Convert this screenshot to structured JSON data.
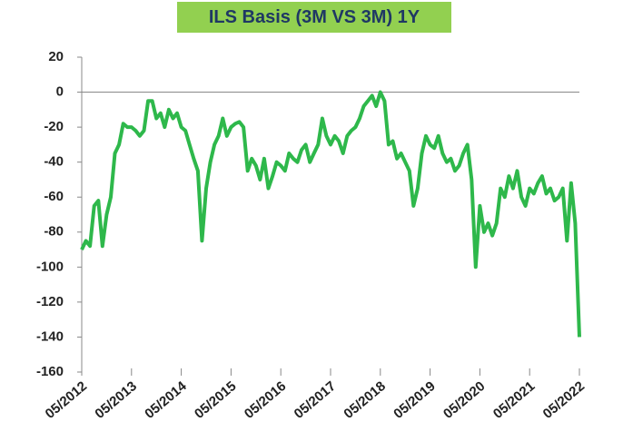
{
  "chart_data": {
    "type": "line",
    "title": "ILS Basis (3M VS 3M) 1Y",
    "x": [
      "05/2012",
      "06/2012",
      "07/2012",
      "08/2012",
      "09/2012",
      "10/2012",
      "11/2012",
      "12/2012",
      "01/2013",
      "02/2013",
      "03/2013",
      "04/2013",
      "05/2013",
      "06/2013",
      "07/2013",
      "08/2013",
      "09/2013",
      "10/2013",
      "11/2013",
      "12/2013",
      "01/2014",
      "02/2014",
      "03/2014",
      "04/2014",
      "05/2014",
      "06/2014",
      "07/2014",
      "08/2014",
      "09/2014",
      "10/2014",
      "11/2014",
      "12/2014",
      "01/2015",
      "02/2015",
      "03/2015",
      "04/2015",
      "05/2015",
      "06/2015",
      "07/2015",
      "08/2015",
      "09/2015",
      "10/2015",
      "11/2015",
      "12/2015",
      "01/2016",
      "02/2016",
      "03/2016",
      "04/2016",
      "05/2016",
      "06/2016",
      "07/2016",
      "08/2016",
      "09/2016",
      "10/2016",
      "11/2016",
      "12/2016",
      "01/2017",
      "02/2017",
      "03/2017",
      "04/2017",
      "05/2017",
      "06/2017",
      "07/2017",
      "08/2017",
      "09/2017",
      "10/2017",
      "11/2017",
      "12/2017",
      "01/2018",
      "02/2018",
      "03/2018",
      "04/2018",
      "05/2018",
      "06/2018",
      "07/2018",
      "08/2018",
      "09/2018",
      "10/2018",
      "11/2018",
      "12/2018",
      "01/2019",
      "02/2019",
      "03/2019",
      "04/2019",
      "05/2019",
      "06/2019",
      "07/2019",
      "08/2019",
      "09/2019",
      "10/2019",
      "11/2019",
      "12/2019",
      "01/2020",
      "02/2020",
      "03/2020",
      "04/2020",
      "05/2020",
      "06/2020",
      "07/2020",
      "08/2020",
      "09/2020",
      "10/2020",
      "11/2020",
      "12/2020",
      "01/2021",
      "02/2021",
      "03/2021",
      "04/2021",
      "05/2021",
      "06/2021",
      "07/2021",
      "08/2021",
      "09/2021",
      "10/2021",
      "11/2021",
      "12/2021",
      "01/2022",
      "02/2022",
      "03/2022",
      "04/2022",
      "05/2022"
    ],
    "series": [
      {
        "color": "#2eb84b",
        "values": [
          -90,
          -85,
          -88,
          -65,
          -62,
          -88,
          -70,
          -60,
          -35,
          -30,
          -18,
          -20,
          -20,
          -22,
          -25,
          -22,
          -5,
          -5,
          -15,
          -12,
          -20,
          -10,
          -15,
          -12,
          -20,
          -22,
          -30,
          -38,
          -45,
          -85,
          -55,
          -40,
          -30,
          -25,
          -15,
          -25,
          -20,
          -18,
          -17,
          -20,
          -45,
          -38,
          -42,
          -50,
          -38,
          -55,
          -48,
          -40,
          -42,
          -45,
          -35,
          -38,
          -40,
          -33,
          -30,
          -40,
          -35,
          -30,
          -15,
          -25,
          -30,
          -25,
          -28,
          -35,
          -25,
          -22,
          -20,
          -15,
          -8,
          -5,
          -2,
          -8,
          0,
          -5,
          -30,
          -28,
          -38,
          -35,
          -40,
          -45,
          -65,
          -55,
          -35,
          -25,
          -30,
          -32,
          -25,
          -35,
          -40,
          -38,
          -45,
          -42,
          -35,
          -30,
          -50,
          -100,
          -65,
          -80,
          -75,
          -82,
          -75,
          -55,
          -60,
          -48,
          -55,
          -45,
          -60,
          -65,
          -55,
          -58,
          -52,
          -48,
          -58,
          -55,
          -62,
          -60,
          -55,
          -85,
          -52,
          -75,
          -140
        ]
      }
    ],
    "ylim": [
      -160,
      20
    ],
    "yticks": [
      -160,
      -140,
      -120,
      -100,
      -80,
      -60,
      -40,
      -20,
      0,
      20
    ],
    "xticks": [
      "05/2012",
      "05/2013",
      "05/2014",
      "05/2015",
      "05/2016",
      "05/2017",
      "05/2018",
      "05/2019",
      "05/2020",
      "05/2021",
      "05/2022"
    ]
  }
}
